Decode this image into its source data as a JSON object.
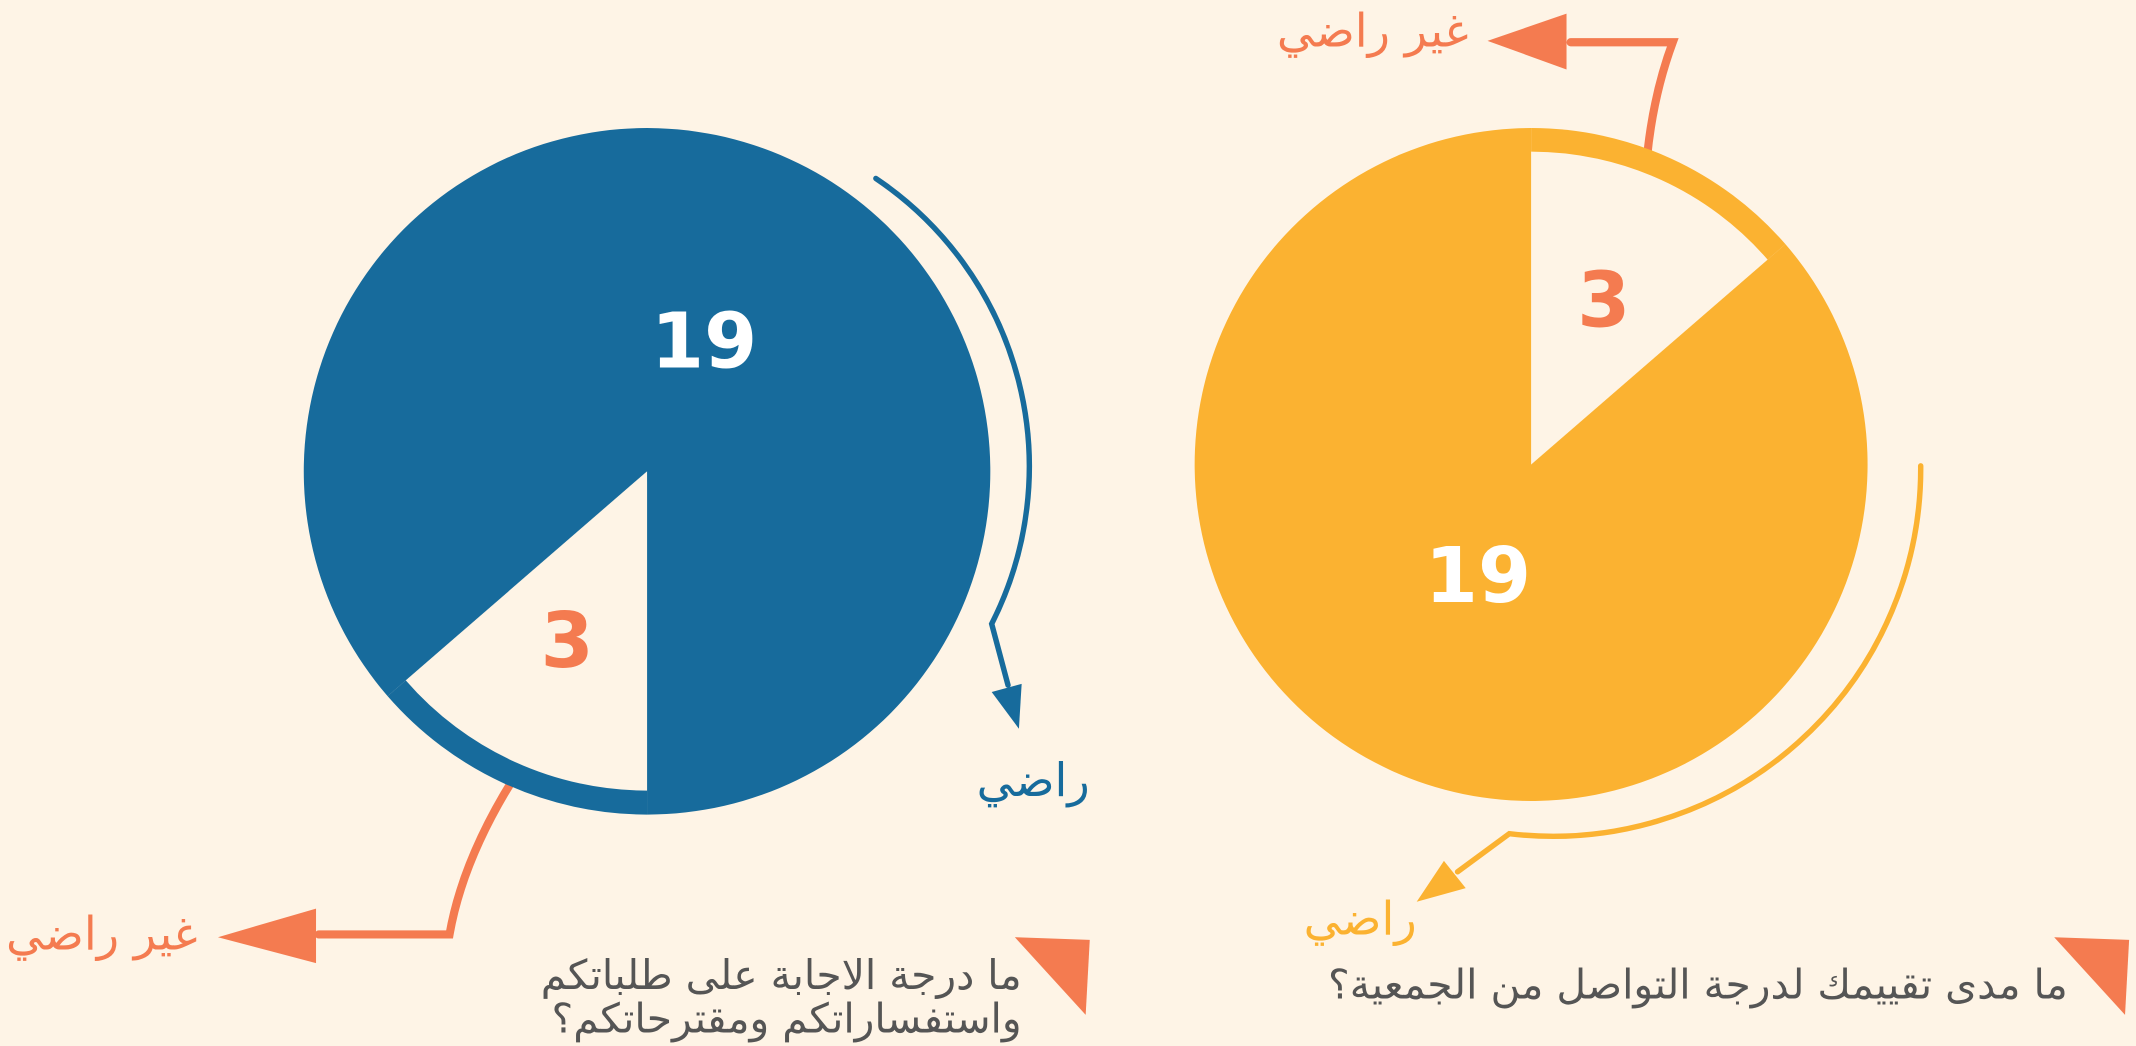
{
  "chart_data": [
    {
      "type": "pie",
      "title": [
        "ما درجة الاجابة على طلباتكم",
        "واستفساراتكم ومقترحاتكم؟"
      ],
      "categories": [
        "راضي",
        "غير راضي"
      ],
      "values": [
        19,
        3
      ],
      "colors": [
        "#176b9c",
        "#fef4e6"
      ],
      "label_colors": [
        "#176b9c",
        "#f47b50"
      ]
    },
    {
      "type": "pie",
      "title": [
        "ما مدى تقييمك لدرجة التواصل من الجمعية؟"
      ],
      "categories": [
        "راضي",
        "غير راضي"
      ],
      "values": [
        19,
        3
      ],
      "colors": [
        "#fbb231",
        "#fef4e6"
      ],
      "label_colors": [
        "#fbb231",
        "#f47b50"
      ]
    }
  ]
}
